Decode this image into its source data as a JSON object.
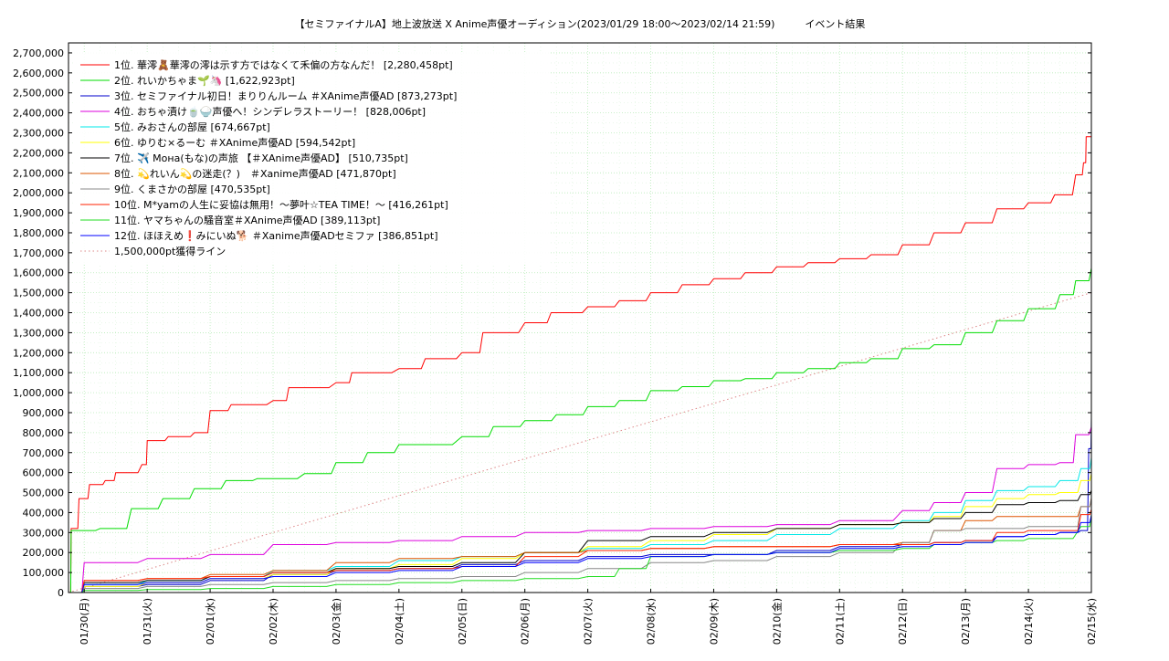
{
  "chart_data": {
    "type": "line",
    "title": "【セミファイナルA】地上波放送 X Anime声優オーディション(2023/01/29 18:00～2023/02/14 21:59)　　　イベント結果",
    "xlabel": "",
    "ylabel": "",
    "ylim": [
      0,
      2750000
    ],
    "y_ticks": [
      0,
      100000,
      200000,
      300000,
      400000,
      500000,
      600000,
      700000,
      800000,
      900000,
      1000000,
      1100000,
      1200000,
      1300000,
      1400000,
      1500000,
      1600000,
      1700000,
      1800000,
      1900000,
      2000000,
      2100000,
      2200000,
      2300000,
      2400000,
      2500000,
      2600000,
      2700000
    ],
    "y_tick_labels": [
      "0",
      "100,000",
      "200,000",
      "300,000",
      "400,000",
      "500,000",
      "600,000",
      "700,000",
      "800,000",
      "900,000",
      "1,000,000",
      "1,100,000",
      "1,200,000",
      "1,300,000",
      "1,400,000",
      "1,500,000",
      "1,600,000",
      "1,700,000",
      "1,800,000",
      "1,900,000",
      "2,000,000",
      "2,100,000",
      "2,200,000",
      "2,300,000",
      "2,400,000",
      "2,500,000",
      "2,600,000",
      "2,700,000"
    ],
    "xlim": [
      "2023-01-29 18:00",
      "2023-02-15 00:00"
    ],
    "x_tick_dates": [
      "2023-01-30",
      "2023-01-31",
      "2023-02-01",
      "2023-02-02",
      "2023-02-03",
      "2023-02-04",
      "2023-02-05",
      "2023-02-06",
      "2023-02-07",
      "2023-02-08",
      "2023-02-09",
      "2023-02-10",
      "2023-02-11",
      "2023-02-12",
      "2023-02-13",
      "2023-02-14",
      "2023-02-15"
    ],
    "x_tick_labels": [
      "01/30(月)",
      "01/31(火)",
      "02/01(水)",
      "02/02(木)",
      "02/03(金)",
      "02/04(土)",
      "02/05(日)",
      "02/06(月)",
      "02/07(火)",
      "02/08(水)",
      "02/09(木)",
      "02/10(金)",
      "02/11(土)",
      "02/12(日)",
      "02/13(月)",
      "02/14(火)",
      "02/15(水)"
    ],
    "grid": true,
    "legend_position": "top-left",
    "series": [
      {
        "name": "1位. 華澪🧸華澪の澪は示す方ではなくて禾偏の方なんだ！ [2,280,458pt]",
        "color": "#ff0000",
        "style": "solid",
        "x": [
          "2023-01-29 18:00",
          "2023-01-29 19:00",
          "2023-01-29 22:00",
          "2023-01-30 02:00",
          "2023-01-30 08:00",
          "2023-01-30 12:00",
          "2023-01-30 22:00",
          "2023-01-31 00:00",
          "2023-01-31 08:00",
          "2023-01-31 18:00",
          "2023-02-01 00:00",
          "2023-02-01 08:00",
          "2023-02-02 00:00",
          "2023-02-02 06:00",
          "2023-02-03 00:00",
          "2023-02-03 06:00",
          "2023-02-04 00:00",
          "2023-02-04 10:00",
          "2023-02-05 00:00",
          "2023-02-05 08:00",
          "2023-02-06 00:00",
          "2023-02-06 10:00",
          "2023-02-07 00:00",
          "2023-02-07 12:00",
          "2023-02-08 00:00",
          "2023-02-08 12:00",
          "2023-02-09 00:00",
          "2023-02-09 12:00",
          "2023-02-10 00:00",
          "2023-02-10 12:00",
          "2023-02-11 00:00",
          "2023-02-11 12:00",
          "2023-02-12 00:00",
          "2023-02-12 12:00",
          "2023-02-13 00:00",
          "2023-02-13 12:00",
          "2023-02-14 00:00",
          "2023-02-14 10:00",
          "2023-02-14 18:00",
          "2023-02-14 21:00",
          "2023-02-14 22:00",
          "2023-02-15 00:00"
        ],
        "y": [
          0,
          320000,
          470000,
          540000,
          560000,
          600000,
          640000,
          760000,
          780000,
          800000,
          910000,
          940000,
          960000,
          1025000,
          1050000,
          1100000,
          1120000,
          1170000,
          1200000,
          1300000,
          1350000,
          1400000,
          1430000,
          1460000,
          1500000,
          1540000,
          1570000,
          1600000,
          1630000,
          1650000,
          1670000,
          1690000,
          1740000,
          1800000,
          1850000,
          1920000,
          1950000,
          1990000,
          2090000,
          2150000,
          2280458,
          2280458
        ]
      },
      {
        "name": "2位. れいかちゃま🌱🦄 [1,622,923pt]",
        "color": "#00dd00",
        "style": "solid",
        "x": [
          "2023-01-29 18:00",
          "2023-01-29 19:00",
          "2023-01-30 06:00",
          "2023-01-30 18:00",
          "2023-01-31 06:00",
          "2023-01-31 18:00",
          "2023-02-01 06:00",
          "2023-02-01 18:00",
          "2023-02-02 12:00",
          "2023-02-03 00:00",
          "2023-02-03 12:00",
          "2023-02-04 00:00",
          "2023-02-05 00:00",
          "2023-02-05 12:00",
          "2023-02-06 00:00",
          "2023-02-06 12:00",
          "2023-02-07 00:00",
          "2023-02-07 12:00",
          "2023-02-08 00:00",
          "2023-02-08 12:00",
          "2023-02-09 00:00",
          "2023-02-09 12:00",
          "2023-02-10 00:00",
          "2023-02-10 12:00",
          "2023-02-11 00:00",
          "2023-02-11 12:00",
          "2023-02-12 00:00",
          "2023-02-12 12:00",
          "2023-02-13 00:00",
          "2023-02-13 12:00",
          "2023-02-14 00:00",
          "2023-02-14 12:00",
          "2023-02-14 18:00",
          "2023-02-15 00:00"
        ],
        "y": [
          0,
          310000,
          320000,
          420000,
          470000,
          520000,
          560000,
          570000,
          595000,
          650000,
          700000,
          740000,
          780000,
          830000,
          860000,
          890000,
          930000,
          960000,
          1010000,
          1030000,
          1060000,
          1070000,
          1100000,
          1120000,
          1150000,
          1170000,
          1220000,
          1240000,
          1300000,
          1360000,
          1420000,
          1490000,
          1560000,
          1622923
        ]
      },
      {
        "name": "3位. セミファイナル初日！まりりんルーム ＃XAnime声優AD [873,273pt]",
        "color": "#0000cc",
        "style": "solid",
        "x": [
          "2023-01-29 18:00",
          "2023-01-30 00:00",
          "2023-01-31 00:00",
          "2023-02-01 00:00",
          "2023-02-02 00:00",
          "2023-02-03 00:00",
          "2023-02-04 00:00",
          "2023-02-05 00:00",
          "2023-02-06 00:00",
          "2023-02-07 00:00",
          "2023-02-08 00:00",
          "2023-02-09 00:00",
          "2023-02-10 00:00",
          "2023-02-11 00:00",
          "2023-02-12 00:00",
          "2023-02-12 12:00",
          "2023-02-13 00:00",
          "2023-02-13 12:00",
          "2023-02-14 00:00",
          "2023-02-14 12:00",
          "2023-02-14 20:00",
          "2023-02-14 23:00",
          "2023-02-15 00:00"
        ],
        "y": [
          0,
          30000,
          40000,
          60000,
          90000,
          110000,
          120000,
          140000,
          160000,
          180000,
          190000,
          190000,
          210000,
          230000,
          240000,
          250000,
          260000,
          280000,
          290000,
          300000,
          310000,
          720000,
          873273
        ]
      },
      {
        "name": "4位. おちゃ漬け🍵🍚声優へ！シンデレラストーリー！ [828,006pt]",
        "color": "#dd00dd",
        "style": "solid",
        "x": [
          "2023-01-29 18:00",
          "2023-01-30 00:00",
          "2023-01-31 00:00",
          "2023-02-01 00:00",
          "2023-02-02 00:00",
          "2023-02-03 00:00",
          "2023-02-04 00:00",
          "2023-02-05 00:00",
          "2023-02-06 00:00",
          "2023-02-07 00:00",
          "2023-02-08 00:00",
          "2023-02-09 00:00",
          "2023-02-10 00:00",
          "2023-02-11 00:00",
          "2023-02-12 00:00",
          "2023-02-12 12:00",
          "2023-02-13 00:00",
          "2023-02-13 12:00",
          "2023-02-14 00:00",
          "2023-02-14 12:00",
          "2023-02-14 18:00",
          "2023-02-15 00:00"
        ],
        "y": [
          0,
          150000,
          170000,
          190000,
          240000,
          250000,
          260000,
          280000,
          300000,
          310000,
          320000,
          330000,
          340000,
          360000,
          410000,
          450000,
          500000,
          620000,
          640000,
          650000,
          790000,
          828006
        ]
      },
      {
        "name": "5位. みおさんの部屋 [674,667pt]",
        "color": "#00e8e8",
        "style": "solid",
        "x": [
          "2023-01-29 18:00",
          "2023-01-30 00:00",
          "2023-01-31 00:00",
          "2023-02-01 00:00",
          "2023-02-02 00:00",
          "2023-02-03 00:00",
          "2023-02-04 00:00",
          "2023-02-05 00:00",
          "2023-02-06 00:00",
          "2023-02-07 00:00",
          "2023-02-08 00:00",
          "2023-02-09 00:00",
          "2023-02-10 00:00",
          "2023-02-11 00:00",
          "2023-02-12 00:00",
          "2023-02-12 12:00",
          "2023-02-13 00:00",
          "2023-02-13 12:00",
          "2023-02-14 00:00",
          "2023-02-14 12:00",
          "2023-02-14 20:00",
          "2023-02-15 00:00"
        ],
        "y": [
          0,
          40000,
          60000,
          80000,
          110000,
          130000,
          160000,
          180000,
          200000,
          220000,
          240000,
          260000,
          290000,
          320000,
          360000,
          400000,
          460000,
          510000,
          530000,
          560000,
          620000,
          674667
        ]
      },
      {
        "name": "6位. ゆりむ×るーむ ＃XAnime声優AD [594,542pt]",
        "color": "#ffff00",
        "style": "solid",
        "x": [
          "2023-01-29 18:00",
          "2023-01-30 00:00",
          "2023-01-31 00:00",
          "2023-02-01 00:00",
          "2023-02-02 00:00",
          "2023-02-03 00:00",
          "2023-02-04 00:00",
          "2023-02-05 00:00",
          "2023-02-06 00:00",
          "2023-02-07 00:00",
          "2023-02-08 00:00",
          "2023-02-09 00:00",
          "2023-02-10 00:00",
          "2023-02-11 00:00",
          "2023-02-12 00:00",
          "2023-02-12 12:00",
          "2023-02-13 00:00",
          "2023-02-13 12:00",
          "2023-02-14 00:00",
          "2023-02-14 12:00",
          "2023-02-14 20:00",
          "2023-02-15 00:00"
        ],
        "y": [
          0,
          30000,
          50000,
          70000,
          90000,
          120000,
          140000,
          170000,
          200000,
          230000,
          260000,
          290000,
          320000,
          340000,
          350000,
          380000,
          430000,
          470000,
          490000,
          500000,
          560000,
          594542
        ]
      },
      {
        "name": "7位. ✈️ Mона(もな)の声旅 【＃XAnime声優AD】 [510,735pt]",
        "color": "#000000",
        "style": "solid",
        "x": [
          "2023-01-29 18:00",
          "2023-01-30 00:00",
          "2023-01-31 00:00",
          "2023-02-01 00:00",
          "2023-02-02 00:00",
          "2023-02-03 00:00",
          "2023-02-04 00:00",
          "2023-02-05 00:00",
          "2023-02-06 00:00",
          "2023-02-07 00:00",
          "2023-02-08 00:00",
          "2023-02-09 00:00",
          "2023-02-10 00:00",
          "2023-02-11 00:00",
          "2023-02-12 00:00",
          "2023-02-12 12:00",
          "2023-02-13 00:00",
          "2023-02-13 12:00",
          "2023-02-14 00:00",
          "2023-02-14 12:00",
          "2023-02-14 20:00",
          "2023-02-15 00:00"
        ],
        "y": [
          0,
          50000,
          60000,
          80000,
          100000,
          120000,
          130000,
          150000,
          200000,
          260000,
          280000,
          300000,
          320000,
          340000,
          350000,
          370000,
          400000,
          440000,
          450000,
          460000,
          490000,
          510735
        ]
      },
      {
        "name": "8位. 💫れいん💫の迷走(？)　＃Xanime声優AD [471,870pt]",
        "color": "#dd5500",
        "style": "solid",
        "x": [
          "2023-01-29 18:00",
          "2023-01-30 00:00",
          "2023-01-31 00:00",
          "2023-02-01 00:00",
          "2023-02-02 00:00",
          "2023-02-03 00:00",
          "2023-02-04 00:00",
          "2023-02-05 00:00",
          "2023-02-06 00:00",
          "2023-02-07 00:00",
          "2023-02-08 00:00",
          "2023-02-09 00:00",
          "2023-02-10 00:00",
          "2023-02-11 00:00",
          "2023-02-12 00:00",
          "2023-02-12 12:00",
          "2023-02-13 00:00",
          "2023-02-13 12:00",
          "2023-02-14 00:00",
          "2023-02-14 12:00",
          "2023-02-14 20:00",
          "2023-02-15 00:00"
        ],
        "y": [
          0,
          60000,
          70000,
          90000,
          110000,
          150000,
          170000,
          180000,
          200000,
          210000,
          220000,
          230000,
          230000,
          240000,
          250000,
          310000,
          360000,
          380000,
          380000,
          380000,
          430000,
          471870
        ]
      },
      {
        "name": "9位. くまさかの部屋 [470,535pt]",
        "color": "#888888",
        "style": "solid",
        "x": [
          "2023-01-29 18:00",
          "2023-01-30 00:00",
          "2023-01-31 00:00",
          "2023-02-01 00:00",
          "2023-02-02 00:00",
          "2023-02-03 00:00",
          "2023-02-04 00:00",
          "2023-02-05 00:00",
          "2023-02-06 00:00",
          "2023-02-07 00:00",
          "2023-02-08 00:00",
          "2023-02-09 00:00",
          "2023-02-10 00:00",
          "2023-02-11 00:00",
          "2023-02-12 00:00",
          "2023-02-12 12:00",
          "2023-02-13 00:00",
          "2023-02-13 12:00",
          "2023-02-14 00:00",
          "2023-02-14 12:00",
          "2023-02-14 20:00",
          "2023-02-15 00:00"
        ],
        "y": [
          0,
          20000,
          30000,
          40000,
          50000,
          60000,
          70000,
          80000,
          100000,
          120000,
          150000,
          160000,
          180000,
          200000,
          250000,
          310000,
          320000,
          320000,
          330000,
          330000,
          430000,
          470535
        ]
      },
      {
        "name": "10位. M*yamの人生に妥協は無用！～夢叶☆TEA TIME！～ [416,261pt]",
        "color": "#ff2200",
        "style": "solid",
        "x": [
          "2023-01-29 18:00",
          "2023-01-30 00:00",
          "2023-01-31 00:00",
          "2023-02-01 00:00",
          "2023-02-02 00:00",
          "2023-02-03 00:00",
          "2023-02-04 00:00",
          "2023-02-05 00:00",
          "2023-02-06 00:00",
          "2023-02-07 00:00",
          "2023-02-08 00:00",
          "2023-02-09 00:00",
          "2023-02-10 00:00",
          "2023-02-11 00:00",
          "2023-02-12 00:00",
          "2023-02-12 12:00",
          "2023-02-13 00:00",
          "2023-02-13 12:00",
          "2023-02-14 00:00",
          "2023-02-14 12:00",
          "2023-02-14 20:00",
          "2023-02-15 00:00"
        ],
        "y": [
          0,
          60000,
          70000,
          80000,
          100000,
          110000,
          120000,
          130000,
          180000,
          210000,
          220000,
          230000,
          230000,
          240000,
          240000,
          250000,
          260000,
          300000,
          310000,
          310000,
          390000,
          416261
        ]
      },
      {
        "name": "11位. ヤマちゃんの騒音室＃XAnime声優AD [389,113pt]",
        "color": "#22dd22",
        "style": "solid",
        "x": [
          "2023-01-29 18:00",
          "2023-01-30 00:00",
          "2023-01-31 00:00",
          "2023-02-01 00:00",
          "2023-02-02 00:00",
          "2023-02-03 00:00",
          "2023-02-04 00:00",
          "2023-02-05 00:00",
          "2023-02-06 00:00",
          "2023-02-07 00:00",
          "2023-02-07 12:00",
          "2023-02-08 00:00",
          "2023-02-09 00:00",
          "2023-02-10 00:00",
          "2023-02-11 00:00",
          "2023-02-12 00:00",
          "2023-02-12 12:00",
          "2023-02-13 00:00",
          "2023-02-13 12:00",
          "2023-02-14 00:00",
          "2023-02-14 20:00",
          "2023-02-15 00:00"
        ],
        "y": [
          0,
          10000,
          15000,
          20000,
          30000,
          40000,
          50000,
          60000,
          70000,
          80000,
          120000,
          180000,
          190000,
          200000,
          210000,
          220000,
          240000,
          250000,
          260000,
          270000,
          330000,
          389113
        ]
      },
      {
        "name": "12位. ほほえめ❗️みにいぬ🐕 ＃Xanime声優ADセミファ [386,851pt]",
        "color": "#0000ff",
        "style": "solid",
        "x": [
          "2023-01-29 18:00",
          "2023-01-30 00:00",
          "2023-01-31 00:00",
          "2023-02-01 00:00",
          "2023-02-02 00:00",
          "2023-02-03 00:00",
          "2023-02-04 00:00",
          "2023-02-05 00:00",
          "2023-02-06 00:00",
          "2023-02-07 00:00",
          "2023-02-08 00:00",
          "2023-02-09 00:00",
          "2023-02-10 00:00",
          "2023-02-11 00:00",
          "2023-02-12 00:00",
          "2023-02-12 12:00",
          "2023-02-13 00:00",
          "2023-02-13 12:00",
          "2023-02-14 00:00",
          "2023-02-14 12:00",
          "2023-02-14 20:00",
          "2023-02-15 00:00"
        ],
        "y": [
          0,
          40000,
          50000,
          70000,
          80000,
          100000,
          110000,
          130000,
          150000,
          170000,
          180000,
          190000,
          200000,
          220000,
          230000,
          240000,
          250000,
          280000,
          290000,
          300000,
          350000,
          386851
        ]
      },
      {
        "name": "1,500,000pt獲得ライン",
        "color": "#dd8888",
        "style": "dotted",
        "x": [
          "2023-01-29 18:00",
          "2023-02-15 00:00"
        ],
        "y": [
          0,
          1500000
        ]
      }
    ]
  }
}
